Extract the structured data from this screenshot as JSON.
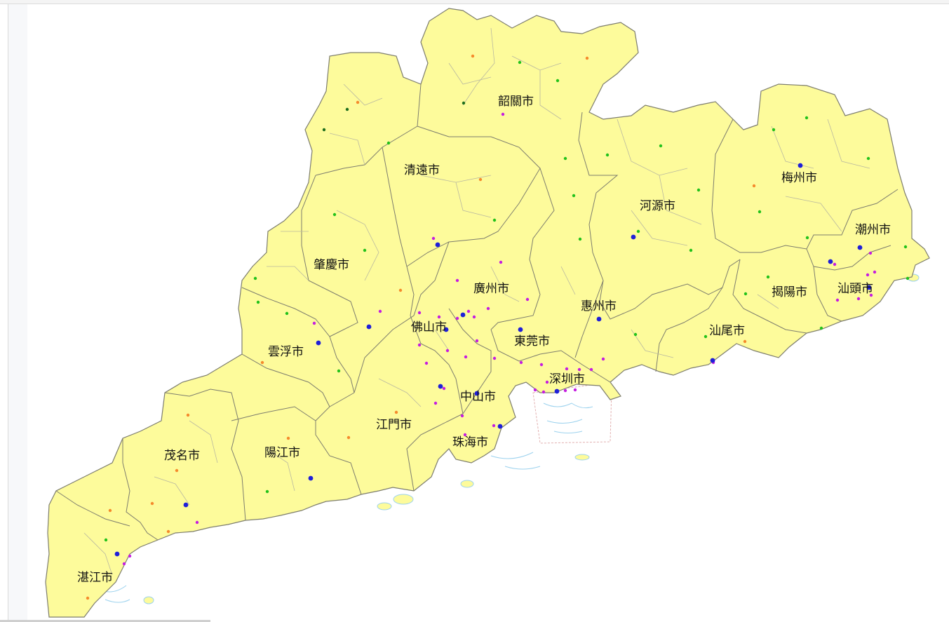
{
  "map": {
    "land_color": "#fdfb9b",
    "border_color": "#7d7d6e",
    "water_color": "#bde3f5",
    "city_labels": [
      "韶關市",
      "清遠市",
      "梅州市",
      "河源市",
      "潮州市",
      "肇慶市",
      "廣州市",
      "揭陽市",
      "汕頭市",
      "惠州市",
      "佛山市",
      "東莞市",
      "汕尾市",
      "雲浮市",
      "深圳市",
      "中山市",
      "江門市",
      "珠海市",
      "茂名市",
      "陽江市",
      "湛江市"
    ],
    "marker_colors": {
      "orange": "#f58a2c",
      "green": "#22c21b",
      "darkgreen": "#1e6e1e",
      "purple": "#c51de0",
      "blue": "#1f1fd8"
    }
  }
}
